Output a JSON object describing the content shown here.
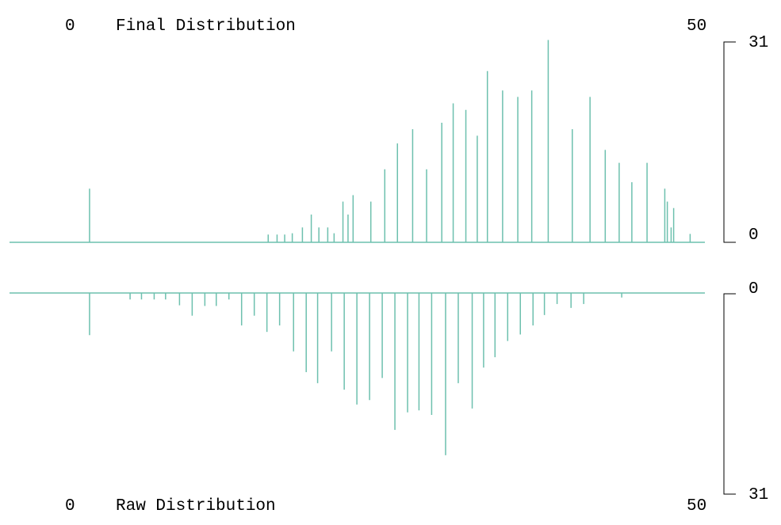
{
  "colors": {
    "bar": "#6dc0ae",
    "baseline": "#6dc0ae",
    "axis": "#000000",
    "text": "#000000"
  },
  "chart_data": [
    {
      "type": "bar",
      "title": "Final Distribution",
      "x_min_label": "0",
      "x_max_label": "50",
      "y_max_label": "31",
      "y_min_label": "0",
      "xlim": [
        0,
        50
      ],
      "ylim": [
        0,
        31
      ],
      "orientation": "up",
      "bars": [
        {
          "x": 3.0,
          "v": 8.3
        },
        {
          "x": 17.1,
          "v": 1.2
        },
        {
          "x": 17.8,
          "v": 1.2
        },
        {
          "x": 18.4,
          "v": 1.2
        },
        {
          "x": 19.0,
          "v": 1.4
        },
        {
          "x": 19.8,
          "v": 2.3
        },
        {
          "x": 20.5,
          "v": 4.3
        },
        {
          "x": 21.1,
          "v": 2.3
        },
        {
          "x": 21.8,
          "v": 2.3
        },
        {
          "x": 22.3,
          "v": 1.4
        },
        {
          "x": 23.0,
          "v": 6.3
        },
        {
          "x": 23.4,
          "v": 4.3
        },
        {
          "x": 23.8,
          "v": 7.3
        },
        {
          "x": 25.2,
          "v": 6.3
        },
        {
          "x": 26.3,
          "v": 11.3
        },
        {
          "x": 27.3,
          "v": 15.3
        },
        {
          "x": 28.5,
          "v": 17.5
        },
        {
          "x": 29.6,
          "v": 11.3
        },
        {
          "x": 30.8,
          "v": 18.5
        },
        {
          "x": 31.7,
          "v": 21.5
        },
        {
          "x": 32.7,
          "v": 20.5
        },
        {
          "x": 33.6,
          "v": 16.5
        },
        {
          "x": 34.4,
          "v": 26.5
        },
        {
          "x": 35.6,
          "v": 23.5
        },
        {
          "x": 36.8,
          "v": 22.5
        },
        {
          "x": 37.9,
          "v": 23.5
        },
        {
          "x": 39.2,
          "v": 31.3
        },
        {
          "x": 41.1,
          "v": 17.5
        },
        {
          "x": 42.5,
          "v": 22.5
        },
        {
          "x": 43.7,
          "v": 14.3
        },
        {
          "x": 44.8,
          "v": 12.3
        },
        {
          "x": 45.8,
          "v": 9.3
        },
        {
          "x": 47.0,
          "v": 12.3
        },
        {
          "x": 48.4,
          "v": 8.3
        },
        {
          "x": 48.6,
          "v": 6.3
        },
        {
          "x": 48.9,
          "v": 2.3
        },
        {
          "x": 49.1,
          "v": 5.3
        },
        {
          "x": 50.4,
          "v": 1.3
        }
      ]
    },
    {
      "type": "bar",
      "title": "Raw Distribution",
      "x_min_label": "0",
      "x_max_label": "50",
      "y_max_label": "31",
      "y_min_label": "0",
      "xlim": [
        0,
        50
      ],
      "ylim": [
        0,
        31
      ],
      "orientation": "down",
      "bars": [
        {
          "x": 3.0,
          "v": 6.5
        },
        {
          "x": 6.2,
          "v": 1.0
        },
        {
          "x": 7.1,
          "v": 1.0
        },
        {
          "x": 8.1,
          "v": 1.0
        },
        {
          "x": 9.0,
          "v": 1.0
        },
        {
          "x": 10.1,
          "v": 1.9
        },
        {
          "x": 11.1,
          "v": 3.5
        },
        {
          "x": 12.1,
          "v": 2.0
        },
        {
          "x": 13.0,
          "v": 2.0
        },
        {
          "x": 14.0,
          "v": 1.0
        },
        {
          "x": 15.0,
          "v": 5.0
        },
        {
          "x": 16.0,
          "v": 3.5
        },
        {
          "x": 17.0,
          "v": 6.0
        },
        {
          "x": 18.0,
          "v": 5.0
        },
        {
          "x": 19.1,
          "v": 9.0
        },
        {
          "x": 20.1,
          "v": 12.2
        },
        {
          "x": 21.0,
          "v": 13.9
        },
        {
          "x": 22.1,
          "v": 9.0
        },
        {
          "x": 23.1,
          "v": 14.9
        },
        {
          "x": 24.1,
          "v": 17.2
        },
        {
          "x": 25.1,
          "v": 16.5
        },
        {
          "x": 26.1,
          "v": 13.1
        },
        {
          "x": 27.1,
          "v": 21.1
        },
        {
          "x": 28.1,
          "v": 18.4
        },
        {
          "x": 29.0,
          "v": 18.1
        },
        {
          "x": 30.0,
          "v": 18.8
        },
        {
          "x": 31.1,
          "v": 25.0
        },
        {
          "x": 32.1,
          "v": 13.9
        },
        {
          "x": 33.2,
          "v": 17.8
        },
        {
          "x": 34.1,
          "v": 11.5
        },
        {
          "x": 35.0,
          "v": 9.9
        },
        {
          "x": 36.0,
          "v": 7.4
        },
        {
          "x": 37.0,
          "v": 6.4
        },
        {
          "x": 38.0,
          "v": 5.0
        },
        {
          "x": 38.9,
          "v": 3.4
        },
        {
          "x": 39.9,
          "v": 1.7
        },
        {
          "x": 41.0,
          "v": 2.3
        },
        {
          "x": 42.0,
          "v": 1.7
        },
        {
          "x": 45.0,
          "v": 0.7
        }
      ]
    }
  ]
}
